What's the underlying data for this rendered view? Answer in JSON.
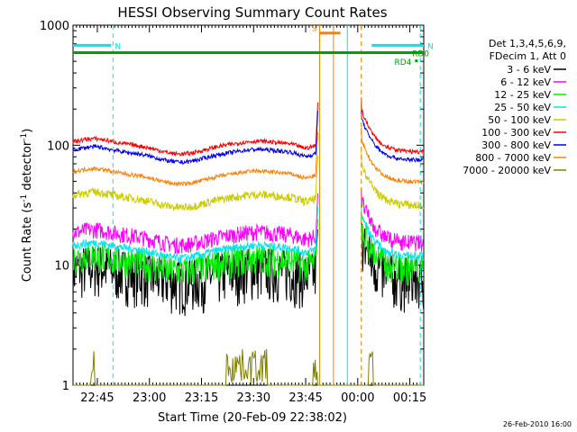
{
  "chart_data": {
    "type": "line",
    "title": "HESSI Observing Summary Count Rates",
    "xlabel": "Start Time (20-Feb-09 22:38:02)",
    "ylabel_parts": [
      "Count Rate (s",
      "-1",
      " detector",
      "-1",
      ")"
    ],
    "y_scale": "log",
    "ylim": [
      1,
      1000
    ],
    "xlim_minutes_after_2238": [
      0,
      101
    ],
    "x_ticks": [
      {
        "label": "22:45",
        "min": 7
      },
      {
        "label": "23:00",
        "min": 22
      },
      {
        "label": "23:15",
        "min": 37
      },
      {
        "label": "23:30",
        "min": 52
      },
      {
        "label": "23:45",
        "min": 67
      },
      {
        "label": "00:00",
        "min": 82
      },
      {
        "label": "00:15",
        "min": 97
      }
    ],
    "y_ticks": [
      {
        "label": "1",
        "value": 1
      },
      {
        "label": "10",
        "value": 10
      },
      {
        "label": "100",
        "value": 100
      },
      {
        "label": "1000",
        "value": 1000
      }
    ],
    "legend_title": [
      "Det 1,3,4,5,6,9,",
      "FDecim 1, Att 0"
    ],
    "series": [
      {
        "name": "3 - 6 keV",
        "color": "#000000",
        "base": 9,
        "ripple": 0.5
      },
      {
        "name": "6 - 12 keV",
        "color": "#ff00ff",
        "base": 18,
        "ripple": 0.16
      },
      {
        "name": "12 - 25 keV",
        "color": "#00ee00",
        "base": 11,
        "ripple": 0.3
      },
      {
        "name": "25 - 50 keV",
        "color": "#00e5ee",
        "base": 14,
        "ripple": 0.08
      },
      {
        "name": "50 - 100 keV",
        "color": "#cccc00",
        "base": 37,
        "ripple": 0.08
      },
      {
        "name": "100 - 300 keV",
        "color": "#ff0000",
        "base": 103,
        "ripple": 0.04
      },
      {
        "name": "300 - 800 keV",
        "color": "#0000ee",
        "base": 88,
        "ripple": 0.04
      },
      {
        "name": "800 - 7000 keV",
        "color": "#ff7f00",
        "base": 58,
        "ripple": 0.04
      },
      {
        "name": "7000 - 20000 keV",
        "color": "#808000",
        "base": 1,
        "ripple": 0
      }
    ],
    "event_bars": [
      {
        "label": "N",
        "color": "#00e5ee",
        "y": 680,
        "x_start_min": 0,
        "x_end_min": 11
      },
      {
        "label": "N",
        "color": "#00e5ee",
        "y": 680,
        "x_start_min": 86,
        "x_end_min": 101
      },
      {
        "label": "S",
        "color": "#ff7f00",
        "y": 860,
        "x_start_min": 71,
        "x_end_min": 77
      },
      {
        "label": "RD0",
        "color": "#00a000",
        "y": 590,
        "x_start_min": 0,
        "x_end_min": 101
      },
      {
        "label": "RD4",
        "color": "#00a000",
        "y": 500,
        "x_start_min": 98.5,
        "x_end_min": 99
      }
    ],
    "vertical_markers_min": [
      {
        "min": 11.5,
        "color": "#00e5ee",
        "style": "dashed"
      },
      {
        "min": 71.0,
        "color": "#ff7f00",
        "style": "solid"
      },
      {
        "min": 75.0,
        "color": "#ff7f00",
        "style": "solid"
      },
      {
        "min": 79.0,
        "color": "#00e5ee",
        "style": "solid"
      },
      {
        "min": 83.0,
        "color": "#ff7f00",
        "style": "dashed"
      },
      {
        "min": 100.0,
        "color": "#00e5ee",
        "style": "dashed"
      }
    ],
    "data_gap_min": [
      71,
      82
    ],
    "grid": false,
    "legend_placement": "right"
  },
  "footer_date": "26-Feb-2010 16:00"
}
